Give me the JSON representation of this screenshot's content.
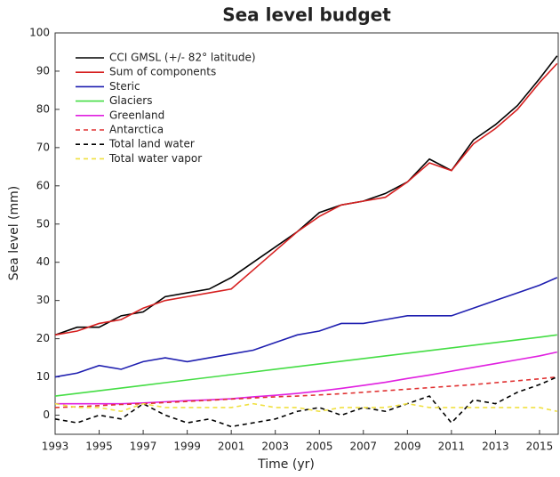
{
  "chart_data": {
    "type": "line",
    "title": "Sea level budget",
    "xlabel": "Time (yr)",
    "ylabel": "Sea  level (mm)",
    "x": [
      1993,
      1994,
      1995,
      1996,
      1997,
      1998,
      1999,
      2000,
      2001,
      2002,
      2003,
      2004,
      2005,
      2006,
      2007,
      2008,
      2009,
      2010,
      2011,
      2012,
      2013,
      2014,
      2015,
      2015.8
    ],
    "series": [
      {
        "name": "CCI GMSL (+/- 82° latitude)",
        "color": "#000000",
        "dashed": false,
        "values": [
          21,
          23,
          23,
          26,
          27,
          31,
          32,
          33,
          36,
          40,
          44,
          48,
          53,
          55,
          56,
          58,
          61,
          67,
          64,
          72,
          76,
          81,
          88,
          94
        ]
      },
      {
        "name": "Sum of components",
        "color": "#d62020",
        "dashed": false,
        "values": [
          21,
          22,
          24,
          25,
          28,
          30,
          31,
          32,
          33,
          38,
          43,
          48,
          52,
          55,
          56,
          57,
          61,
          66,
          64,
          71,
          75,
          80,
          87,
          92
        ]
      },
      {
        "name": "Steric",
        "color": "#1f1fb0",
        "dashed": false,
        "values": [
          10,
          11,
          13,
          12,
          14,
          15,
          14,
          15,
          16,
          17,
          19,
          21,
          22,
          24,
          24,
          25,
          26,
          26,
          26,
          28,
          30,
          32,
          34,
          36
        ]
      },
      {
        "name": "Glaciers",
        "color": "#44dd44",
        "dashed": false,
        "values": [
          5,
          5.7,
          6.4,
          7.1,
          7.8,
          8.5,
          9.2,
          9.9,
          10.6,
          11.3,
          12,
          12.7,
          13.4,
          14.1,
          14.8,
          15.5,
          16.2,
          16.9,
          17.6,
          18.3,
          19,
          19.7,
          20.4,
          21
        ]
      },
      {
        "name": "Greenland",
        "color": "#e020e0",
        "dashed": false,
        "values": [
          3,
          3,
          3,
          3,
          3.2,
          3.5,
          3.8,
          4,
          4.3,
          4.8,
          5.2,
          5.7,
          6.3,
          7,
          7.8,
          8.6,
          9.6,
          10.5,
          11.5,
          12.5,
          13.5,
          14.5,
          15.5,
          16.5
        ]
      },
      {
        "name": "Antarctica",
        "color": "#e03030",
        "dashed": true,
        "values": [
          2,
          2.2,
          2.5,
          2.8,
          3,
          3.3,
          3.6,
          3.9,
          4.2,
          4.5,
          4.8,
          5,
          5.3,
          5.6,
          6,
          6.4,
          6.8,
          7.2,
          7.6,
          8,
          8.5,
          9,
          9.5,
          10
        ]
      },
      {
        "name": "Total land water",
        "color": "#000000",
        "dashed": true,
        "values": [
          -1,
          -2,
          0,
          -1,
          3,
          0,
          -2,
          -1,
          -3,
          -2,
          -1,
          1,
          2,
          0,
          2,
          1,
          3,
          5,
          -2,
          4,
          3,
          6,
          8,
          10
        ]
      },
      {
        "name": "Total water vapor",
        "color": "#f0e040",
        "dashed": true,
        "values": [
          3,
          2,
          2,
          1,
          3,
          2,
          2,
          2,
          2,
          3,
          2,
          2,
          1,
          2,
          2,
          2,
          3,
          2,
          2,
          2,
          2,
          2,
          2,
          1
        ]
      }
    ],
    "xlim": [
      1993,
      2015.85
    ],
    "xticks": [
      1993,
      1995,
      1997,
      1999,
      2001,
      2003,
      2005,
      2007,
      2009,
      2011,
      2013,
      2015
    ],
    "ylim": [
      -5,
      100
    ],
    "yticks": [
      0,
      10,
      20,
      30,
      40,
      50,
      60,
      70,
      80,
      90,
      100
    ],
    "legend": "upper left",
    "grid": false
  }
}
